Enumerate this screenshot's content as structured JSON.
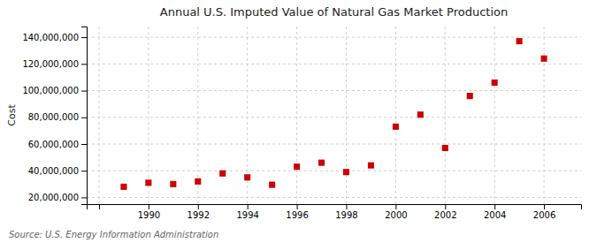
{
  "chart_data": {
    "type": "scatter",
    "title": "Annual U.S. Imputed Value of Natural Gas Market Production",
    "y_label": "Cost",
    "source": "Source: U.S. Energy Information Administration",
    "x": [
      1989,
      1990,
      1991,
      1992,
      1993,
      1994,
      1995,
      1996,
      1997,
      1998,
      1999,
      2000,
      2001,
      2002,
      2003,
      2004,
      2005,
      2006
    ],
    "values": [
      28000000,
      31000000,
      30000000,
      32000000,
      38000000,
      35000000,
      29500000,
      43000000,
      46000000,
      39000000,
      44000000,
      73000000,
      82000000,
      57000000,
      96000000,
      106000000,
      137000000,
      124000000
    ],
    "color": "#cc0000",
    "marker": "square",
    "xlim": [
      1987.5,
      2007.5
    ],
    "ylim": [
      15000000,
      148000000
    ],
    "xticks": [
      {
        "value": 1988,
        "label": null
      },
      1990,
      1992,
      1994,
      1996,
      1998,
      2000,
      2002,
      2004,
      2006
    ],
    "yticks": [
      {
        "value": 20000000,
        "label": "20,000,000"
      },
      {
        "value": 40000000,
        "label": "40,000,000"
      },
      {
        "value": 60000000,
        "label": "60,000,000"
      },
      {
        "value": 80000000,
        "label": "80,000,000"
      },
      {
        "value": 100000000,
        "label": "100,000,000"
      },
      {
        "value": 120000000,
        "label": "120,000,000"
      },
      {
        "value": 140000000,
        "label": "140,000,000"
      }
    ],
    "grid": true
  }
}
